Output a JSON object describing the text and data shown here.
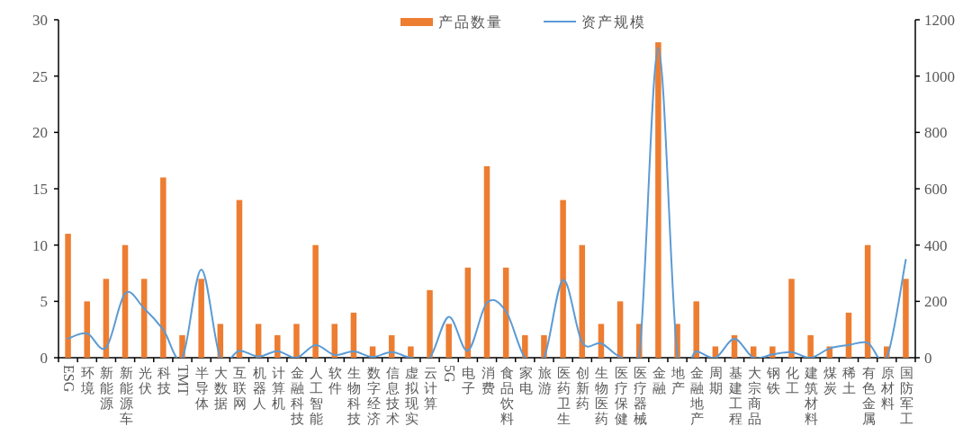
{
  "chart_data": {
    "type": "bar",
    "categories": [
      "ESG",
      "环境",
      "新能源",
      "新能源车",
      "光伏",
      "科技",
      "TMT",
      "半导体",
      "大数据",
      "互联网",
      "机器人",
      "计算机",
      "金融科技",
      "人工智能",
      "软件",
      "生物科技",
      "数字经济",
      "信息技术",
      "虚拟现实",
      "云计算",
      "5G",
      "电子",
      "消费",
      "食品饮料",
      "家电",
      "旅游",
      "医药卫生",
      "创新药",
      "生物医药",
      "医疗保健",
      "医疗器械",
      "金融",
      "地产",
      "金融地产",
      "周期",
      "基建工程",
      "大宗商品",
      "钢铁",
      "化工",
      "建筑材料",
      "煤炭",
      "稀土",
      "有色金属",
      "原材料",
      "国防军工"
    ],
    "series": [
      {
        "name": "产品数量",
        "color": "#ed7d31",
        "values": [
          11,
          5,
          7,
          10,
          7,
          16,
          2,
          7,
          3,
          14,
          3,
          2,
          3,
          10,
          3,
          4,
          1,
          2,
          1,
          6,
          3,
          8,
          17,
          8,
          2,
          2,
          14,
          10,
          3,
          5,
          3,
          28,
          3,
          5,
          1,
          2,
          1,
          1,
          7,
          2,
          1,
          4,
          10,
          1,
          7
        ]
      },
      {
        "name": "资产规模",
        "type": "line",
        "axis": "y2",
        "color": "#5b9bd5",
        "line_style": "solid",
        "values": [
          68,
          86,
          36,
          228,
          175,
          100,
          0,
          313,
          0,
          25,
          4,
          23,
          0,
          45,
          10,
          22,
          3,
          20,
          0,
          0,
          145,
          25,
          195,
          165,
          0,
          0,
          276,
          55,
          51,
          3,
          3,
          1100,
          11,
          22,
          0,
          67,
          0,
          12,
          20,
          0,
          33,
          45,
          53,
          0,
          348
        ]
      }
    ],
    "ylim": [
      0,
      30
    ],
    "yticks": [
      0,
      5,
      10,
      15,
      20,
      25,
      30
    ],
    "y2lim": [
      0,
      1200
    ],
    "y2ticks": [
      0,
      200,
      400,
      600,
      800,
      1000,
      1200
    ],
    "legend": "top",
    "grid": false,
    "marker": "none"
  }
}
